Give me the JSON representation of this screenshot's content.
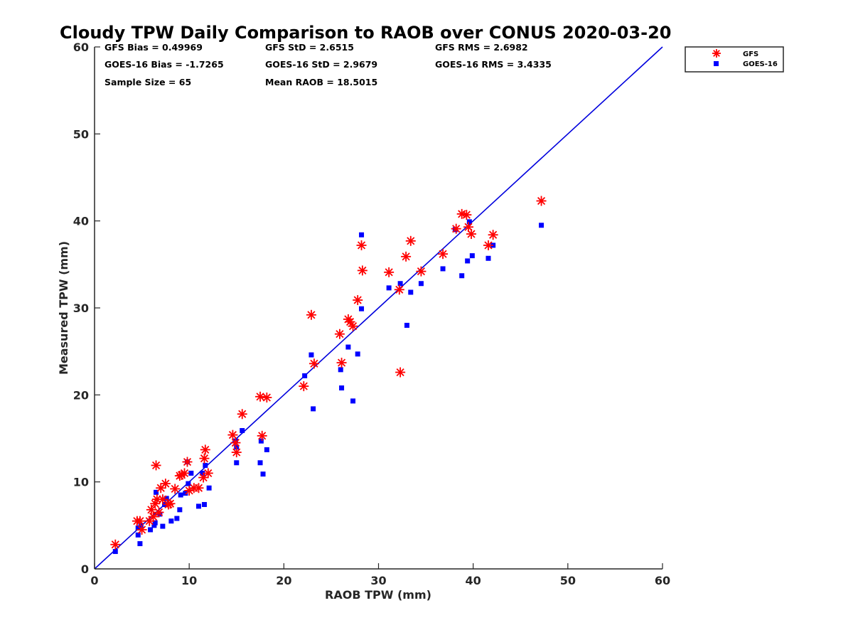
{
  "colors": {
    "gfs": "#ff0000",
    "goes": "#0000ff",
    "identity_line": "#0000dd",
    "axis": "#262626"
  },
  "chart_data": {
    "type": "scatter",
    "title": "Cloudy TPW Daily Comparison to RAOB over CONUS 2020-03-20",
    "xlabel": "RAOB TPW (mm)",
    "ylabel": "Measured TPW (mm)",
    "xlim": [
      0,
      60
    ],
    "ylim": [
      0,
      60
    ],
    "xticks": [
      "0",
      "10",
      "20",
      "30",
      "40",
      "50",
      "60"
    ],
    "yticks": [
      "0",
      "10",
      "20",
      "30",
      "40",
      "50",
      "60"
    ],
    "grid": false,
    "legend_position": "outside-top-right",
    "reference_line": "y = x",
    "stats": {
      "gfs_bias": "GFS Bias = 0.49969",
      "gfs_std": "GFS StD = 2.6515",
      "gfs_rms": "GFS RMS = 2.6982",
      "goes_bias": "GOES-16 Bias = -1.7265",
      "goes_std": "GOES-16 StD = 2.9679",
      "goes_rms": "GOES-16 RMS = 3.4335",
      "sample_size": "Sample Size = 65",
      "mean_raob": "Mean RAOB = 18.5015"
    },
    "series": [
      {
        "name": "GFS",
        "marker": "asterisk",
        "x": [
          2.2,
          4.5,
          4.8,
          5.0,
          5.8,
          6.0,
          6.2,
          6.4,
          6.5,
          6.6,
          6.8,
          7.0,
          7.2,
          7.5,
          7.8,
          8.0,
          8.5,
          9.0,
          9.2,
          9.5,
          9.8,
          10.0,
          10.5,
          11.0,
          11.5,
          11.6,
          11.7,
          12.0,
          14.6,
          14.9,
          15.0,
          15.6,
          17.5,
          17.7,
          18.2,
          22.1,
          22.9,
          23.2,
          25.9,
          26.1,
          26.8,
          27.0,
          27.3,
          27.8,
          28.2,
          28.3,
          31.1,
          32.2,
          32.3,
          32.9,
          33.4,
          34.5,
          36.8,
          38.2,
          38.8,
          39.3,
          39.5,
          39.8,
          41.6,
          42.1,
          47.2
        ],
        "y": [
          2.8,
          5.5,
          5.5,
          4.5,
          5.5,
          6.8,
          6.0,
          7.5,
          11.9,
          8.0,
          6.5,
          9.3,
          8.0,
          9.8,
          7.4,
          7.5,
          9.2,
          10.7,
          10.8,
          11.0,
          12.3,
          9.0,
          9.3,
          9.3,
          10.5,
          12.7,
          13.7,
          11.0,
          15.4,
          14.5,
          13.4,
          17.8,
          19.8,
          15.3,
          19.7,
          21.0,
          29.2,
          23.6,
          27.0,
          23.7,
          28.7,
          28.4,
          27.9,
          30.9,
          37.2,
          34.3,
          34.1,
          32.1,
          22.6,
          35.9,
          37.7,
          34.2,
          36.2,
          39.1,
          40.8,
          40.7,
          39.3,
          38.5,
          37.2,
          38.4,
          42.3
        ]
      },
      {
        "name": "GOES-16",
        "marker": "square",
        "x": [
          2.2,
          4.6,
          4.6,
          4.8,
          4.9,
          5.9,
          6.3,
          6.4,
          6.5,
          6.9,
          7.2,
          7.4,
          7.6,
          8.1,
          8.7,
          9.0,
          9.1,
          9.6,
          9.8,
          9.9,
          10.2,
          11.0,
          11.4,
          11.6,
          11.7,
          12.1,
          14.9,
          15.0,
          15.0,
          15.6,
          17.5,
          17.6,
          17.8,
          18.2,
          22.2,
          22.9,
          23.1,
          26.0,
          26.1,
          26.8,
          27.3,
          27.8,
          28.2,
          28.2,
          31.1,
          32.3,
          33.0,
          33.4,
          34.5,
          36.8,
          38.1,
          38.8,
          39.4,
          39.6,
          39.9,
          41.6,
          42.1,
          47.2
        ],
        "y": [
          2.0,
          3.9,
          4.7,
          2.9,
          5.0,
          4.5,
          5.0,
          5.3,
          8.8,
          6.3,
          4.9,
          7.4,
          8.1,
          5.5,
          5.8,
          6.8,
          8.5,
          8.7,
          12.3,
          9.8,
          11.0,
          7.2,
          11.0,
          7.4,
          11.9,
          9.3,
          14.7,
          14.0,
          12.2,
          15.9,
          12.2,
          14.7,
          10.9,
          13.7,
          22.2,
          24.6,
          18.4,
          22.9,
          20.8,
          25.5,
          19.3,
          24.7,
          29.9,
          38.4,
          32.3,
          32.8,
          28.0,
          31.8,
          32.8,
          34.5,
          39.0,
          33.7,
          35.4,
          39.9,
          36.0,
          35.7,
          37.2,
          39.5
        ]
      }
    ]
  }
}
